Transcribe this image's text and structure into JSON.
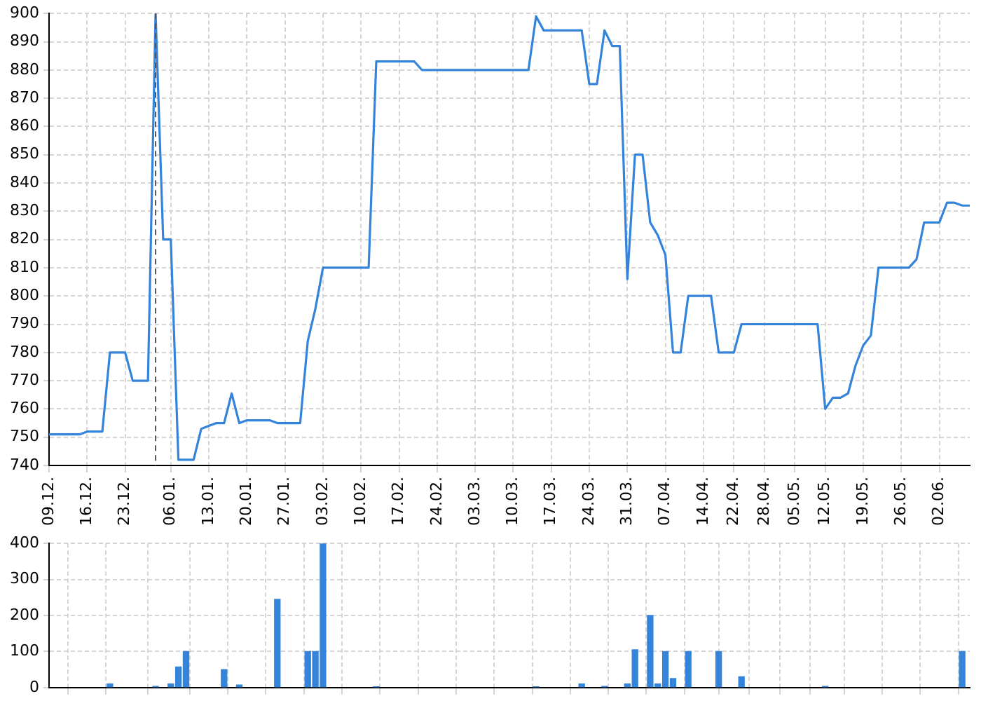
{
  "chart_data": [
    {
      "type": "line",
      "categories": [
        "09.12.",
        null,
        null,
        null,
        null,
        "16.12.",
        null,
        null,
        null,
        null,
        "23.12.",
        null,
        null,
        null,
        null,
        null,
        "06.01.",
        null,
        null,
        null,
        null,
        "13.01.",
        null,
        null,
        null,
        null,
        "20.01.",
        null,
        null,
        null,
        null,
        "27.01.",
        null,
        null,
        null,
        null,
        "03.02.",
        null,
        null,
        null,
        null,
        "10.02.",
        null,
        null,
        null,
        null,
        "17.02.",
        null,
        null,
        null,
        null,
        "24.02.",
        null,
        null,
        null,
        null,
        "03.03.",
        null,
        null,
        null,
        null,
        "10.03.",
        null,
        null,
        null,
        null,
        "17.03.",
        null,
        null,
        null,
        null,
        "24.03.",
        null,
        null,
        null,
        null,
        "31.03.",
        null,
        null,
        null,
        null,
        "07.04.",
        null,
        null,
        null,
        null,
        "14.04.",
        null,
        null,
        null,
        "22.04.",
        null,
        null,
        null,
        "28.04.",
        null,
        null,
        null,
        "05.05.",
        null,
        null,
        null,
        "12.05.",
        null,
        null,
        null,
        null,
        "19.05.",
        null,
        null,
        null,
        null,
        "26.05.",
        null,
        null,
        null,
        null,
        "02.06.",
        null,
        null,
        null,
        null
      ],
      "series": [
        {
          "color": "#3584db",
          "values": [
            751,
            751,
            751,
            751,
            751,
            752,
            752,
            752,
            780,
            780,
            780,
            770,
            770,
            770,
            900,
            820,
            820,
            742,
            742,
            742,
            753,
            754,
            755,
            755,
            765.5,
            755,
            756,
            756,
            756,
            756,
            755,
            755,
            755,
            755,
            784,
            795.5,
            810,
            810,
            810,
            810,
            810,
            810,
            810,
            883,
            883,
            883,
            883,
            883,
            883,
            880,
            880,
            880,
            880,
            880,
            880,
            880,
            880,
            880,
            880,
            880,
            880,
            880,
            880,
            880,
            899,
            894,
            894,
            894,
            894,
            894,
            894,
            875,
            875,
            894,
            888.5,
            888.5,
            806,
            850,
            850,
            826,
            821.5,
            814.5,
            780,
            780,
            800,
            800,
            800,
            800,
            780,
            780,
            780,
            790,
            790,
            790,
            790,
            790,
            790,
            790,
            790,
            790,
            790,
            790,
            760,
            764,
            764,
            765.5,
            775.5,
            782.5,
            786,
            810,
            810,
            810,
            810,
            810,
            813,
            826,
            826,
            826,
            833,
            833,
            832,
            832
          ]
        }
      ],
      "ylim": [
        740,
        900
      ],
      "yticks": [
        740,
        750,
        760,
        770,
        780,
        790,
        800,
        810,
        820,
        830,
        840,
        850,
        860,
        870,
        880,
        890,
        900
      ],
      "grid": true,
      "legend": false,
      "marker": "none",
      "line_style": "solid"
    },
    {
      "type": "bar",
      "categories": [
        "09.12.",
        null,
        null,
        null,
        null,
        "16.12.",
        null,
        null,
        null,
        null,
        "23.12.",
        null,
        null,
        null,
        null,
        null,
        "06.01.",
        null,
        null,
        null,
        null,
        "13.01.",
        null,
        null,
        null,
        null,
        "20.01.",
        null,
        null,
        null,
        null,
        "27.01.",
        null,
        null,
        null,
        null,
        "03.02.",
        null,
        null,
        null,
        null,
        "10.02.",
        null,
        null,
        null,
        null,
        "17.02.",
        null,
        null,
        null,
        null,
        "24.02.",
        null,
        null,
        null,
        null,
        "03.03.",
        null,
        null,
        null,
        null,
        "10.03.",
        null,
        null,
        null,
        null,
        "17.03.",
        null,
        null,
        null,
        null,
        "24.03.",
        null,
        null,
        null,
        null,
        "31.03.",
        null,
        null,
        null,
        null,
        "07.04.",
        null,
        null,
        null,
        null,
        "14.04.",
        null,
        null,
        null,
        "22.04.",
        null,
        null,
        null,
        "28.04.",
        null,
        null,
        null,
        "05.05.",
        null,
        null,
        null,
        "12.05.",
        null,
        null,
        null,
        null,
        "19.05.",
        null,
        null,
        null,
        null,
        "26.05.",
        null,
        null,
        null,
        null,
        "02.06.",
        null,
        null,
        null,
        null
      ],
      "series": [
        {
          "color": "#3584db",
          "values": [
            null,
            null,
            null,
            null,
            null,
            null,
            null,
            null,
            10,
            null,
            null,
            null,
            null,
            null,
            3,
            null,
            10,
            57,
            100,
            null,
            null,
            null,
            null,
            50,
            null,
            7,
            null,
            null,
            null,
            null,
            245,
            null,
            null,
            null,
            100,
            100,
            400,
            null,
            null,
            null,
            null,
            null,
            null,
            2,
            null,
            null,
            null,
            null,
            null,
            null,
            null,
            null,
            null,
            null,
            null,
            null,
            null,
            null,
            null,
            null,
            null,
            null,
            null,
            null,
            2,
            null,
            null,
            null,
            null,
            null,
            10,
            null,
            null,
            3,
            null,
            null,
            10,
            105,
            null,
            200,
            10,
            100,
            25,
            null,
            100,
            null,
            null,
            null,
            100,
            null,
            null,
            30,
            null,
            null,
            null,
            null,
            null,
            null,
            null,
            null,
            null,
            null,
            3,
            null,
            null,
            null,
            null,
            null,
            null,
            null,
            null,
            null,
            null,
            null,
            null,
            null,
            null,
            null,
            null,
            null,
            100,
            null
          ]
        }
      ],
      "ylim": [
        0,
        400
      ],
      "yticks": [
        0,
        100,
        200,
        300,
        400
      ],
      "tick_labels": "y",
      "grid": true,
      "legend": false
    }
  ]
}
